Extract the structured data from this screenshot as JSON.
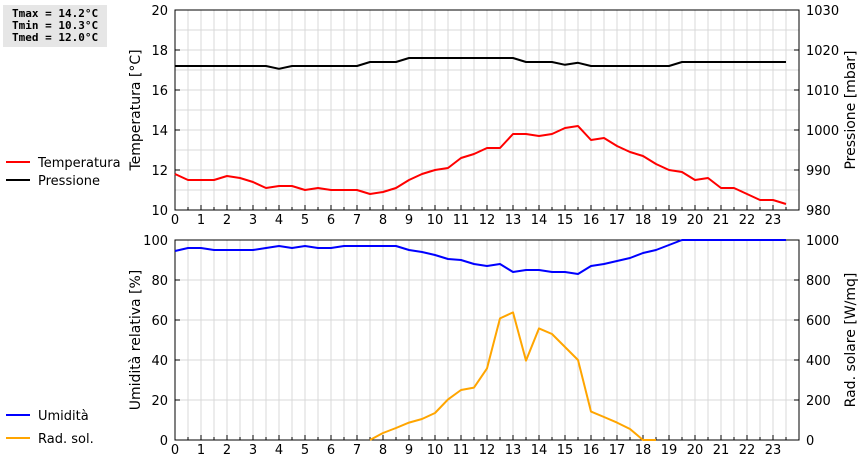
{
  "stats": {
    "tmax": "Tmax = 14.2°C",
    "tmin": "Tmin = 10.3°C",
    "tmed": "Tmed = 12.0°C"
  },
  "chart_data": [
    {
      "type": "line",
      "title": "",
      "xlabel": "",
      "ylabel": "Temperatura [°C]",
      "ylabel_right": "Pressione [mbar]",
      "xlim": [
        0,
        24
      ],
      "ylim": [
        10,
        20
      ],
      "ylim_right": [
        980,
        1030
      ],
      "x_ticks": [
        "0",
        "1",
        "2",
        "3",
        "4",
        "5",
        "6",
        "7",
        "8",
        "9",
        "10",
        "11",
        "12",
        "13",
        "14",
        "15",
        "16",
        "17",
        "18",
        "19",
        "20",
        "21",
        "22",
        "23"
      ],
      "y_ticks": [
        "10",
        "12",
        "14",
        "16",
        "18",
        "20"
      ],
      "y_ticks_right": [
        "980",
        "990",
        "1000",
        "1010",
        "1020",
        "1030"
      ],
      "grid": true,
      "legend_placement": "left",
      "series": [
        {
          "name": "Temperatura",
          "color": "#ff0000",
          "axis": "left",
          "x": [
            0,
            0.5,
            1,
            1.5,
            2,
            2.5,
            3,
            3.5,
            4,
            4.5,
            5,
            5.5,
            6,
            6.5,
            7,
            7.5,
            8,
            8.5,
            9,
            9.5,
            10,
            10.5,
            11,
            11.5,
            12,
            12.5,
            13,
            13.5,
            14,
            14.5,
            15,
            15.5,
            16,
            16.5,
            17,
            17.5,
            18,
            18.5,
            19,
            19.5,
            20,
            20.5,
            21,
            21.5,
            22,
            22.5,
            23,
            23.5
          ],
          "values": [
            11.8,
            11.5,
            11.5,
            11.5,
            11.7,
            11.6,
            11.4,
            11.1,
            11.2,
            11.2,
            11.0,
            11.1,
            11.0,
            11.0,
            11.0,
            10.8,
            10.9,
            11.1,
            11.5,
            11.8,
            12.0,
            12.1,
            12.6,
            12.8,
            13.1,
            13.1,
            13.8,
            13.8,
            13.7,
            13.8,
            14.1,
            14.2,
            13.5,
            13.6,
            13.2,
            12.9,
            12.7,
            12.3,
            12.0,
            11.9,
            11.5,
            11.6,
            11.1,
            11.1,
            10.8,
            10.5,
            10.5,
            10.3
          ]
        },
        {
          "name": "Pressione",
          "color": "#000000",
          "axis": "right",
          "x": [
            0,
            0.5,
            1,
            1.5,
            2,
            2.5,
            3,
            3.5,
            4,
            4.5,
            5,
            5.5,
            6,
            6.5,
            7,
            7.5,
            8,
            8.5,
            9,
            9.5,
            10,
            10.5,
            11,
            11.5,
            12,
            12.5,
            13,
            13.5,
            14,
            14.5,
            15,
            15.5,
            16,
            16.5,
            17,
            17.5,
            18,
            18.5,
            19,
            19.5,
            20,
            20.5,
            21,
            21.5,
            22,
            22.5,
            23,
            23.5
          ],
          "values": [
            1016,
            1016,
            1016,
            1016,
            1016,
            1016,
            1016,
            1016,
            1015.3,
            1016,
            1016,
            1016,
            1016,
            1016,
            1016,
            1017,
            1017,
            1017,
            1018,
            1018,
            1018,
            1018,
            1018,
            1018,
            1018,
            1018,
            1018,
            1017,
            1017,
            1017,
            1016.3,
            1016.8,
            1016,
            1016,
            1016,
            1016,
            1016,
            1016,
            1016,
            1017,
            1017,
            1017,
            1017,
            1017,
            1017,
            1017,
            1017,
            1017
          ]
        }
      ]
    },
    {
      "type": "line",
      "title": "",
      "xlabel": "",
      "ylabel": "Umidità relativa [%]",
      "ylabel_right": "Rad. solare [W/mq]",
      "xlim": [
        0,
        24
      ],
      "ylim": [
        0,
        100
      ],
      "ylim_right": [
        0,
        1000
      ],
      "x_ticks": [
        "0",
        "1",
        "2",
        "3",
        "4",
        "5",
        "6",
        "7",
        "8",
        "9",
        "10",
        "11",
        "12",
        "13",
        "14",
        "15",
        "16",
        "17",
        "18",
        "19",
        "20",
        "21",
        "22",
        "23"
      ],
      "y_ticks": [
        "0",
        "20",
        "40",
        "60",
        "80",
        "100"
      ],
      "y_ticks_right": [
        "0",
        "200",
        "400",
        "600",
        "800",
        "1000"
      ],
      "grid": true,
      "legend_placement": "left",
      "series": [
        {
          "name": "Umidità",
          "color": "#0000ff",
          "axis": "left",
          "x": [
            0,
            0.5,
            1,
            1.5,
            2,
            2.5,
            3,
            3.5,
            4,
            4.5,
            5,
            5.5,
            6,
            6.5,
            7,
            7.5,
            8,
            8.5,
            9,
            9.5,
            10,
            10.5,
            11,
            11.5,
            12,
            12.5,
            13,
            13.5,
            14,
            14.5,
            15,
            15.5,
            16,
            16.5,
            17,
            17.5,
            18,
            18.5,
            19,
            19.5,
            20,
            20.5,
            21,
            21.5,
            22,
            22.5,
            23,
            23.5
          ],
          "values": [
            94.5,
            96,
            96,
            95,
            95,
            95,
            95,
            96,
            97,
            96,
            97,
            96,
            96,
            97,
            97,
            97,
            97,
            97,
            95,
            94,
            92.5,
            90.5,
            90,
            88,
            87,
            88,
            84,
            85,
            85,
            84,
            84,
            83,
            87,
            88,
            89.5,
            91,
            93.5,
            95,
            97.5,
            100,
            100,
            100,
            100,
            100,
            100,
            100,
            100,
            100
          ]
        },
        {
          "name": "Rad. sol.",
          "color": "#ffa500",
          "axis": "right",
          "x": [
            7.5,
            8,
            8.5,
            9,
            9.5,
            10,
            10.5,
            11,
            11.5,
            12,
            12.5,
            13,
            13.5,
            14,
            14.5,
            15,
            15.5,
            16,
            16.5,
            17,
            17.5,
            18,
            18.5
          ],
          "values": [
            0,
            35,
            60,
            87,
            105,
            135,
            203,
            250,
            262,
            358,
            608,
            638,
            397,
            558,
            530,
            465,
            400,
            142,
            115,
            87,
            55,
            0,
            0
          ]
        }
      ]
    }
  ]
}
